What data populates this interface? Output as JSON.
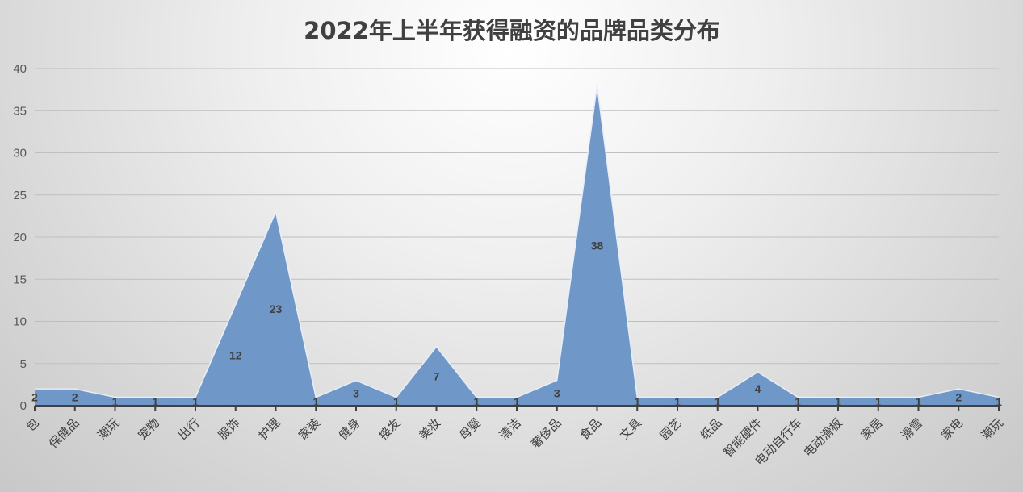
{
  "chart_data": {
    "type": "area",
    "title": "2022年上半年获得融资的品牌品类分布",
    "xlabel": "",
    "ylabel": "",
    "categories": [
      "包",
      "保健品",
      "潮玩",
      "宠物",
      "出行",
      "服饰",
      "护理",
      "家装",
      "健身",
      "接发",
      "美妆",
      "母婴",
      "清洁",
      "奢侈品",
      "食品",
      "文具",
      "园艺",
      "纸品",
      "智能硬件",
      "电动自行车",
      "电动滑板",
      "家居",
      "滑雪",
      "家电",
      "潮玩"
    ],
    "values": [
      2,
      2,
      1,
      1,
      1,
      12,
      23,
      1,
      3,
      1,
      7,
      1,
      1,
      3,
      38,
      1,
      1,
      1,
      4,
      1,
      1,
      1,
      1,
      2,
      1
    ],
    "ylim": [
      0,
      40
    ],
    "yticks": [
      0,
      5,
      10,
      15,
      20,
      25,
      30,
      35,
      40
    ],
    "grid": true,
    "data_labels": true,
    "legend": "none",
    "colors": {
      "fill": "#6f97c8",
      "edge": "#e8eef7",
      "grid": "#bfbfbf",
      "axis": "#404040"
    }
  }
}
